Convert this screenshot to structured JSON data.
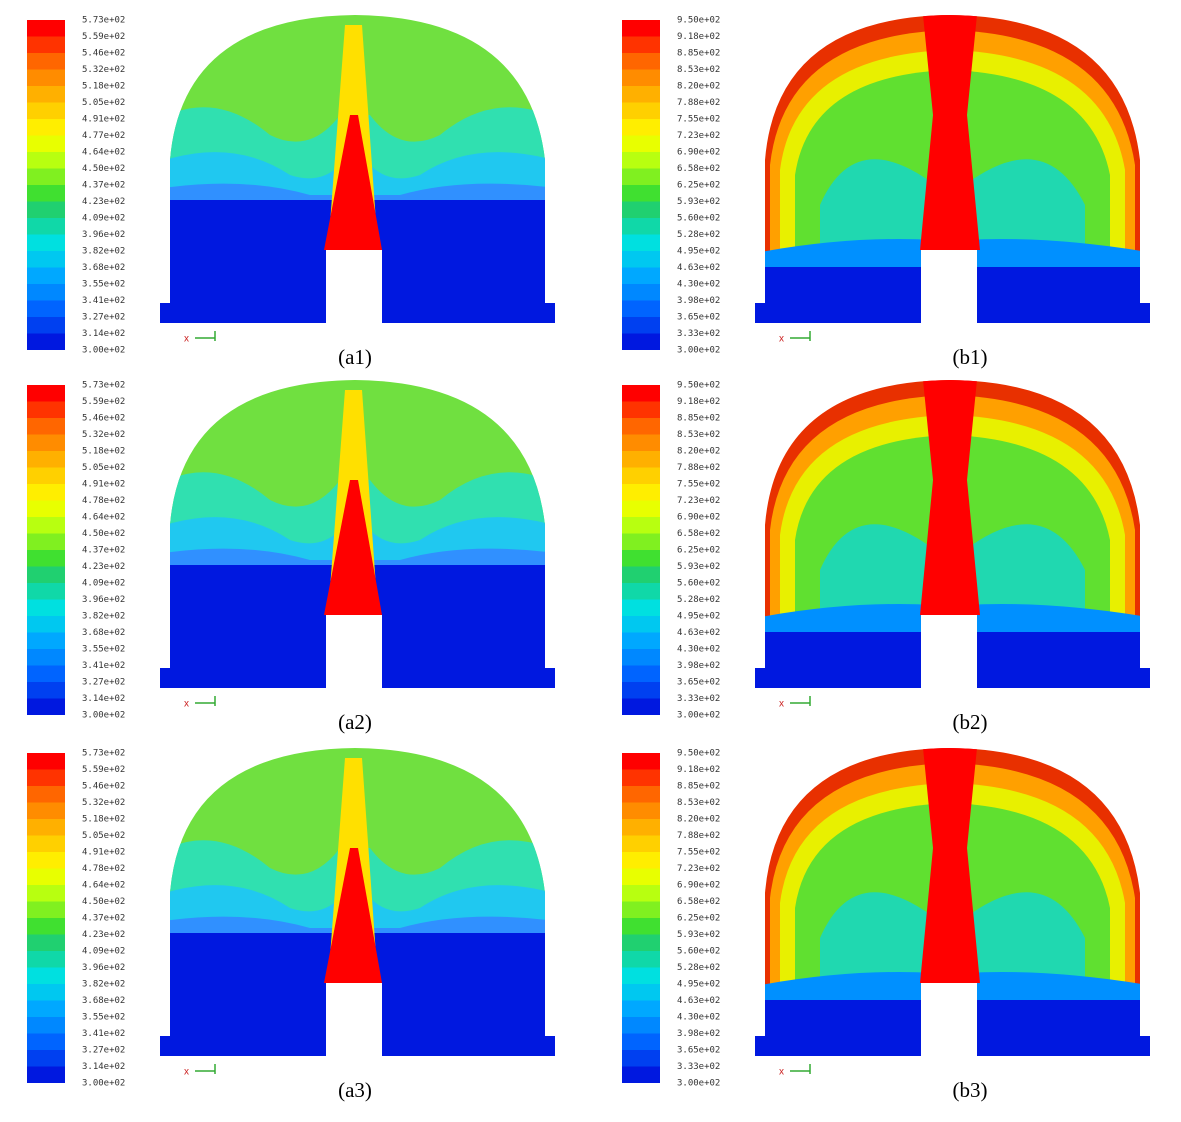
{
  "panels": [
    {
      "caption": "(a1)",
      "axis": "x",
      "legend": [
        "5.73e+02",
        "5.59e+02",
        "5.46e+02",
        "5.32e+02",
        "5.18e+02",
        "5.05e+02",
        "4.91e+02",
        "4.77e+02",
        "4.64e+02",
        "4.50e+02",
        "4.37e+02",
        "4.23e+02",
        "4.09e+02",
        "3.96e+02",
        "3.82e+02",
        "3.68e+02",
        "3.55e+02",
        "3.41e+02",
        "3.27e+02",
        "3.14e+02",
        "3.00e+02"
      ]
    },
    {
      "caption": "(b1)",
      "axis": "x",
      "legend": [
        "9.50e+02",
        "9.18e+02",
        "8.85e+02",
        "8.53e+02",
        "8.20e+02",
        "7.88e+02",
        "7.55e+02",
        "7.23e+02",
        "6.90e+02",
        "6.58e+02",
        "6.25e+02",
        "5.93e+02",
        "5.60e+02",
        "5.28e+02",
        "4.95e+02",
        "4.63e+02",
        "4.30e+02",
        "3.98e+02",
        "3.65e+02",
        "3.33e+02",
        "3.00e+02"
      ]
    },
    {
      "caption": "(a2)",
      "axis": "x",
      "legend": [
        "5.73e+02",
        "5.59e+02",
        "5.46e+02",
        "5.32e+02",
        "5.18e+02",
        "5.05e+02",
        "4.91e+02",
        "4.78e+02",
        "4.64e+02",
        "4.50e+02",
        "4.37e+02",
        "4.23e+02",
        "4.09e+02",
        "3.96e+02",
        "3.82e+02",
        "3.68e+02",
        "3.55e+02",
        "3.41e+02",
        "3.27e+02",
        "3.14e+02",
        "3.00e+02"
      ]
    },
    {
      "caption": "(b2)",
      "axis": "x",
      "legend": [
        "9.50e+02",
        "9.18e+02",
        "8.85e+02",
        "8.53e+02",
        "8.20e+02",
        "7.88e+02",
        "7.55e+02",
        "7.23e+02",
        "6.90e+02",
        "6.58e+02",
        "6.25e+02",
        "5.93e+02",
        "5.60e+02",
        "5.28e+02",
        "4.95e+02",
        "4.63e+02",
        "4.30e+02",
        "3.98e+02",
        "3.65e+02",
        "3.33e+02",
        "3.00e+02"
      ]
    },
    {
      "caption": "(a3)",
      "axis": "x",
      "legend": [
        "5.73e+02",
        "5.59e+02",
        "5.46e+02",
        "5.32e+02",
        "5.18e+02",
        "5.05e+02",
        "4.91e+02",
        "4.78e+02",
        "4.64e+02",
        "4.50e+02",
        "4.37e+02",
        "4.23e+02",
        "4.09e+02",
        "3.96e+02",
        "3.82e+02",
        "3.68e+02",
        "3.55e+02",
        "3.41e+02",
        "3.27e+02",
        "3.14e+02",
        "3.00e+02"
      ]
    },
    {
      "caption": "(b3)",
      "axis": "x",
      "legend": [
        "9.50e+02",
        "9.18e+02",
        "8.85e+02",
        "8.53e+02",
        "8.20e+02",
        "7.88e+02",
        "7.55e+02",
        "7.23e+02",
        "6.90e+02",
        "6.58e+02",
        "6.25e+02",
        "5.93e+02",
        "5.60e+02",
        "5.28e+02",
        "4.95e+02",
        "4.63e+02",
        "4.30e+02",
        "3.98e+02",
        "3.65e+02",
        "3.33e+02",
        "3.00e+02"
      ]
    }
  ]
}
